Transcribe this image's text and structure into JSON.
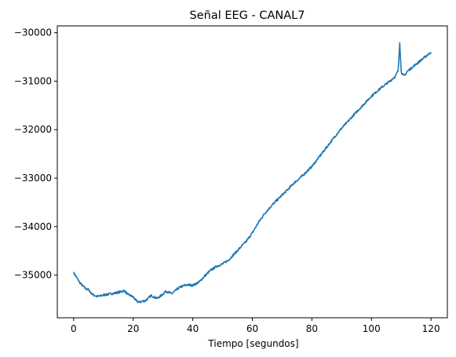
{
  "chart_data": {
    "type": "line",
    "title": "Señal EEG - CANAL7",
    "xlabel": "Tiempo [segundos]",
    "ylabel": "",
    "xlim": [
      -5.5,
      125.5
    ],
    "ylim": [
      -35880,
      -29860
    ],
    "xticks": [
      0,
      20,
      40,
      60,
      80,
      100,
      120
    ],
    "xtick_labels": [
      "0",
      "20",
      "40",
      "60",
      "80",
      "100",
      "120"
    ],
    "yticks": [
      -35000,
      -34000,
      -33000,
      -32000,
      -31000,
      -30000
    ],
    "ytick_labels": [
      "−35000",
      "−34000",
      "−33000",
      "−32000",
      "−31000",
      "−30000"
    ],
    "grid": false,
    "legend": "none",
    "series": [
      {
        "color": "#1f77b4",
        "x": [
          0,
          1,
          2,
          3,
          4,
          5,
          6,
          7,
          8,
          9,
          10,
          12,
          14,
          16,
          17,
          18,
          19,
          20,
          21,
          22,
          23,
          24,
          25,
          26,
          27,
          28,
          29,
          30,
          31,
          32,
          33,
          34,
          35,
          36,
          37,
          38,
          40,
          42,
          44,
          46,
          48,
          50,
          52,
          54,
          56,
          58,
          60,
          62,
          64,
          66,
          68,
          70,
          72,
          74,
          76,
          78,
          80,
          82,
          84,
          86,
          88,
          90,
          92,
          94,
          96,
          98,
          100,
          102,
          104,
          106,
          108,
          109,
          109.5,
          110,
          111,
          112,
          114,
          116,
          118,
          120
        ],
        "y": [
          -34950,
          -35050,
          -35150,
          -35220,
          -35280,
          -35300,
          -35380,
          -35420,
          -35440,
          -35430,
          -35410,
          -35390,
          -35370,
          -35340,
          -35320,
          -35390,
          -35420,
          -35450,
          -35530,
          -35560,
          -35540,
          -35530,
          -35480,
          -35420,
          -35450,
          -35480,
          -35440,
          -35390,
          -35330,
          -35360,
          -35380,
          -35330,
          -35280,
          -35240,
          -35220,
          -35200,
          -35210,
          -35150,
          -35020,
          -34900,
          -34820,
          -34770,
          -34690,
          -34560,
          -34430,
          -34300,
          -34130,
          -33920,
          -33740,
          -33600,
          -33470,
          -33350,
          -33230,
          -33100,
          -33000,
          -32880,
          -32760,
          -32600,
          -32440,
          -32280,
          -32120,
          -31970,
          -31840,
          -31700,
          -31570,
          -31440,
          -31310,
          -31200,
          -31100,
          -31010,
          -30900,
          -30780,
          -30190,
          -30810,
          -30900,
          -30800,
          -30700,
          -30600,
          -30500,
          -30400
        ]
      }
    ]
  }
}
